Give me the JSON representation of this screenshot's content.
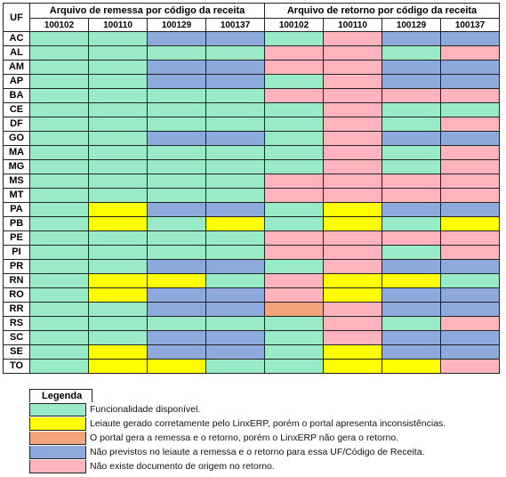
{
  "header": {
    "uf": "UF",
    "remessa_group": "Arquivo de remessa por código da receita",
    "retorno_group": "Arquivo de retorno por código da receita",
    "remessa_codes": [
      "100102",
      "100110",
      "100129",
      "100137"
    ],
    "retorno_codes": [
      "100102",
      "100110",
      "100129",
      "100137"
    ]
  },
  "colors": {
    "G": "#99ebc8",
    "Y": "#ffff00",
    "O": "#f4a47d",
    "B": "#8ea9db",
    "P": "#ffb3bd"
  },
  "rows": [
    {
      "uf": "AC",
      "remessa": [
        "G",
        "G",
        "B",
        "B"
      ],
      "retorno": [
        "G",
        "P",
        "B",
        "B"
      ]
    },
    {
      "uf": "AL",
      "remessa": [
        "G",
        "G",
        "G",
        "G"
      ],
      "retorno": [
        "P",
        "P",
        "G",
        "P"
      ]
    },
    {
      "uf": "AM",
      "remessa": [
        "G",
        "G",
        "B",
        "B"
      ],
      "retorno": [
        "P",
        "P",
        "B",
        "B"
      ]
    },
    {
      "uf": "AP",
      "remessa": [
        "G",
        "G",
        "B",
        "B"
      ],
      "retorno": [
        "G",
        "P",
        "B",
        "B"
      ]
    },
    {
      "uf": "BA",
      "remessa": [
        "G",
        "G",
        "G",
        "G"
      ],
      "retorno": [
        "P",
        "P",
        "P",
        "P"
      ]
    },
    {
      "uf": "CE",
      "remessa": [
        "G",
        "G",
        "G",
        "G"
      ],
      "retorno": [
        "G",
        "P",
        "G",
        "G"
      ]
    },
    {
      "uf": "DF",
      "remessa": [
        "G",
        "G",
        "G",
        "G"
      ],
      "retorno": [
        "G",
        "P",
        "G",
        "P"
      ]
    },
    {
      "uf": "GO",
      "remessa": [
        "G",
        "G",
        "B",
        "B"
      ],
      "retorno": [
        "G",
        "P",
        "B",
        "B"
      ]
    },
    {
      "uf": "MA",
      "remessa": [
        "G",
        "G",
        "G",
        "G"
      ],
      "retorno": [
        "G",
        "P",
        "G",
        "P"
      ]
    },
    {
      "uf": "MG",
      "remessa": [
        "G",
        "G",
        "G",
        "G"
      ],
      "retorno": [
        "G",
        "P",
        "G",
        "P"
      ]
    },
    {
      "uf": "MS",
      "remessa": [
        "G",
        "G",
        "G",
        "G"
      ],
      "retorno": [
        "P",
        "P",
        "P",
        "P"
      ]
    },
    {
      "uf": "MT",
      "remessa": [
        "G",
        "G",
        "G",
        "G"
      ],
      "retorno": [
        "P",
        "P",
        "P",
        "P"
      ]
    },
    {
      "uf": "PA",
      "remessa": [
        "G",
        "Y",
        "B",
        "B"
      ],
      "retorno": [
        "G",
        "Y",
        "B",
        "B"
      ]
    },
    {
      "uf": "PB",
      "remessa": [
        "G",
        "Y",
        "G",
        "Y"
      ],
      "retorno": [
        "G",
        "Y",
        "G",
        "Y"
      ]
    },
    {
      "uf": "PE",
      "remessa": [
        "G",
        "G",
        "G",
        "G"
      ],
      "retorno": [
        "P",
        "P",
        "P",
        "P"
      ]
    },
    {
      "uf": "PI",
      "remessa": [
        "G",
        "G",
        "G",
        "G"
      ],
      "retorno": [
        "P",
        "P",
        "G",
        "P"
      ]
    },
    {
      "uf": "PR",
      "remessa": [
        "G",
        "G",
        "B",
        "B"
      ],
      "retorno": [
        "G",
        "P",
        "B",
        "B"
      ]
    },
    {
      "uf": "RN",
      "remessa": [
        "G",
        "Y",
        "Y",
        "G"
      ],
      "retorno": [
        "P",
        "Y",
        "Y",
        "G"
      ]
    },
    {
      "uf": "RO",
      "remessa": [
        "G",
        "Y",
        "B",
        "B"
      ],
      "retorno": [
        "P",
        "Y",
        "B",
        "B"
      ]
    },
    {
      "uf": "RR",
      "remessa": [
        "G",
        "G",
        "B",
        "B"
      ],
      "retorno": [
        "O",
        "P",
        "B",
        "B"
      ]
    },
    {
      "uf": "RS",
      "remessa": [
        "G",
        "G",
        "G",
        "G"
      ],
      "retorno": [
        "G",
        "P",
        "G",
        "P"
      ]
    },
    {
      "uf": "SC",
      "remessa": [
        "G",
        "G",
        "B",
        "B"
      ],
      "retorno": [
        "G",
        "P",
        "B",
        "B"
      ]
    },
    {
      "uf": "SE",
      "remessa": [
        "G",
        "Y",
        "B",
        "B"
      ],
      "retorno": [
        "G",
        "Y",
        "B",
        "B"
      ]
    },
    {
      "uf": "TO",
      "remessa": [
        "G",
        "Y",
        "Y",
        "G"
      ],
      "retorno": [
        "G",
        "Y",
        "Y",
        "P"
      ]
    }
  ],
  "legend": {
    "title": "Legenda",
    "items": [
      {
        "color": "G",
        "text": "Funcionalidade disponível."
      },
      {
        "color": "Y",
        "text": "Leiaute gerado corretamente pelo LinxERP, porém o portal apresenta inconsistências."
      },
      {
        "color": "O",
        "text": "O portal gera a remessa e o retorno, porém o LinxERP não gera o retorno."
      },
      {
        "color": "B",
        "text": "Não previstos no leiaute a remessa e o retorno para essa UF/Código de Receita."
      },
      {
        "color": "P",
        "text": "Não existe documento de origem no retorno."
      }
    ]
  }
}
